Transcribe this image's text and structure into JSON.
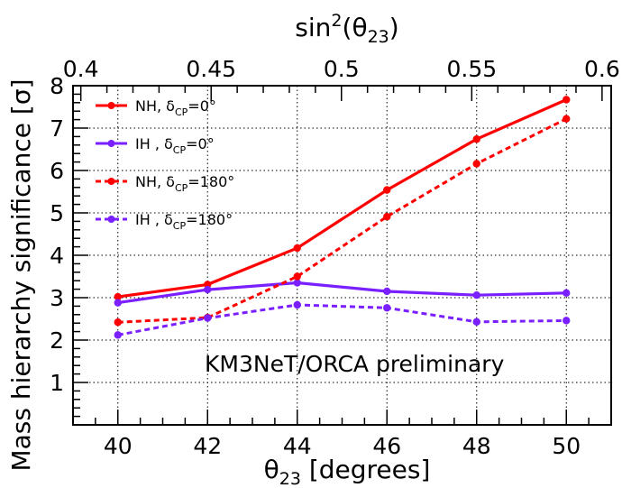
{
  "chart_data": {
    "type": "line",
    "x_axis": {
      "label_symbol": "θ",
      "label_subscript": "23",
      "label_unit": " [degrees]",
      "range": [
        39.0,
        51.0
      ],
      "ticks": [
        40,
        42,
        44,
        46,
        48,
        50
      ]
    },
    "top_axis": {
      "label_prefix": "sin",
      "label_power": "2",
      "label_open": "(θ",
      "label_subscript": "23",
      "label_close": ")",
      "range": [
        0.397,
        0.6035
      ],
      "ticks": [
        "0.4",
        "0.45",
        "0.5",
        "0.55",
        "0.6"
      ]
    },
    "y_axis": {
      "label": "Mass hierarchy significance [σ]",
      "range": [
        0,
        8
      ],
      "ticks": [
        1,
        2,
        3,
        4,
        5,
        6,
        7,
        8
      ]
    },
    "grid": true,
    "legend_position": "top-left",
    "annotation": "KM3NeT/ORCA preliminary",
    "x": [
      40,
      42,
      44,
      46,
      48,
      50
    ],
    "series": [
      {
        "legend_main": "NH, δ",
        "legend_sub": "CP",
        "legend_tail": "=0°",
        "color": "#ff0000",
        "dashed": false,
        "values": [
          3.02,
          3.31,
          4.17,
          5.54,
          6.74,
          7.67
        ]
      },
      {
        "legend_main": "IH  , δ",
        "legend_sub": "CP",
        "legend_tail": "=0°",
        "color": "#7a1fff",
        "dashed": false,
        "values": [
          2.88,
          3.19,
          3.35,
          3.15,
          3.06,
          3.11
        ]
      },
      {
        "legend_main": "NH, δ",
        "legend_sub": "CP",
        "legend_tail": "=180°",
        "color": "#ff0000",
        "dashed": true,
        "values": [
          2.42,
          2.53,
          3.5,
          4.91,
          6.16,
          7.22
        ]
      },
      {
        "legend_main": "IH  , δ",
        "legend_sub": "CP",
        "legend_tail": "=180°",
        "color": "#7a1fff",
        "dashed": true,
        "values": [
          2.12,
          2.52,
          2.83,
          2.76,
          2.43,
          2.46
        ]
      }
    ]
  }
}
